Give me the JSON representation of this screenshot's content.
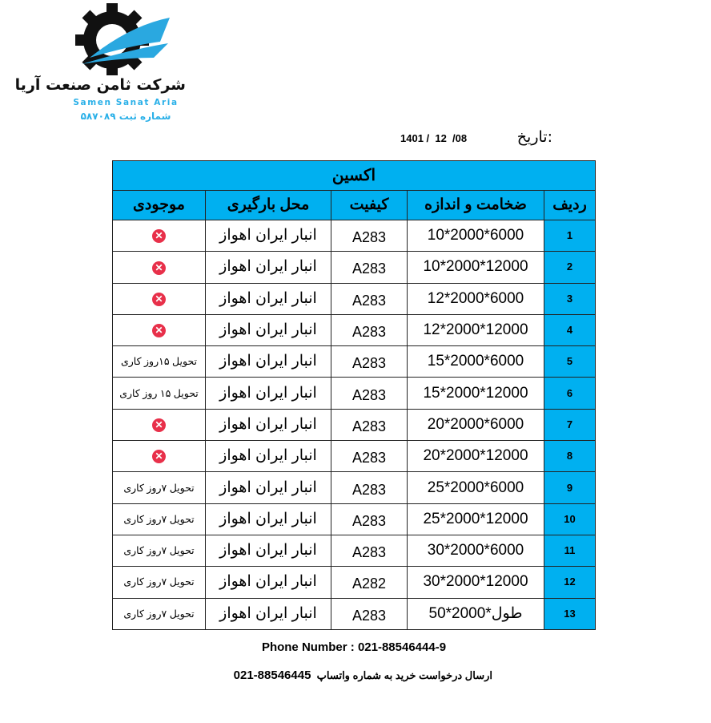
{
  "logo": {
    "name_fa": "شرکت ثامن صنعت آریا",
    "name_en": "Samen Sanat Aria",
    "registration": "شماره ثبت ۵۸۷۰۸۹"
  },
  "date": {
    "label": "تاریخ:",
    "value": "1401 /  12  /08"
  },
  "table": {
    "title": "اکسین",
    "headers": [
      "ردیف",
      "ضخامت و اندازه",
      "کیفیت",
      "محل بارگیری",
      "موجودی"
    ],
    "rows": [
      {
        "n": "1",
        "size": "10*2000*6000",
        "q": "A283",
        "loc": "انبار ایران اهواز",
        "stock": "x"
      },
      {
        "n": "2",
        "size": "10*2000*12000",
        "q": "A283",
        "loc": "انبار ایران اهواز",
        "stock": "x"
      },
      {
        "n": "3",
        "size": "12*2000*6000",
        "q": "A283",
        "loc": "انبار ایران اهواز",
        "stock": "x"
      },
      {
        "n": "4",
        "size": "12*2000*12000",
        "q": "A283",
        "loc": "انبار ایران اهواز",
        "stock": "x"
      },
      {
        "n": "5",
        "size": "15*2000*6000",
        "q": "A283",
        "loc": "انبار ایران اهواز",
        "stock": "تحویل ۱۵روز کاری"
      },
      {
        "n": "6",
        "size": "15*2000*12000",
        "q": "A283",
        "loc": "انبار ایران اهواز",
        "stock": "تحویل ۱۵ روز کاری"
      },
      {
        "n": "7",
        "size": "20*2000*6000",
        "q": "A283",
        "loc": "انبار ایران اهواز",
        "stock": "x"
      },
      {
        "n": "8",
        "size": "20*2000*12000",
        "q": "A283",
        "loc": "انبار ایران اهواز",
        "stock": "x"
      },
      {
        "n": "9",
        "size": "25*2000*6000",
        "q": "A283",
        "loc": "انبار ایران اهواز",
        "stock": "تحویل ۷روز کاری"
      },
      {
        "n": "10",
        "size": "25*2000*12000",
        "q": "A283",
        "loc": "انبار ایران اهواز",
        "stock": "تحویل ۷روز کاری"
      },
      {
        "n": "11",
        "size": "30*2000*6000",
        "q": "A283",
        "loc": "انبار ایران اهواز",
        "stock": "تحویل ۷روز کاری"
      },
      {
        "n": "12",
        "size": "30*2000*12000",
        "q": "A282",
        "loc": "انبار ایران اهواز",
        "stock": "تحویل ۷روز کاری"
      },
      {
        "n": "13",
        "size": "50*2000*طول",
        "q": "A283",
        "loc": "انبار ایران اهواز",
        "stock": "تحویل ۷روز کاری"
      }
    ]
  },
  "footer": {
    "phone": "Phone Number : 021-88546444-9",
    "whatsapp_text": "ارسال درخواست خرید به شماره واتساپ",
    "whatsapp_number": "021-88546445"
  },
  "colors": {
    "header_bg": "#00b0f0",
    "unavailable": "#e8304a"
  }
}
